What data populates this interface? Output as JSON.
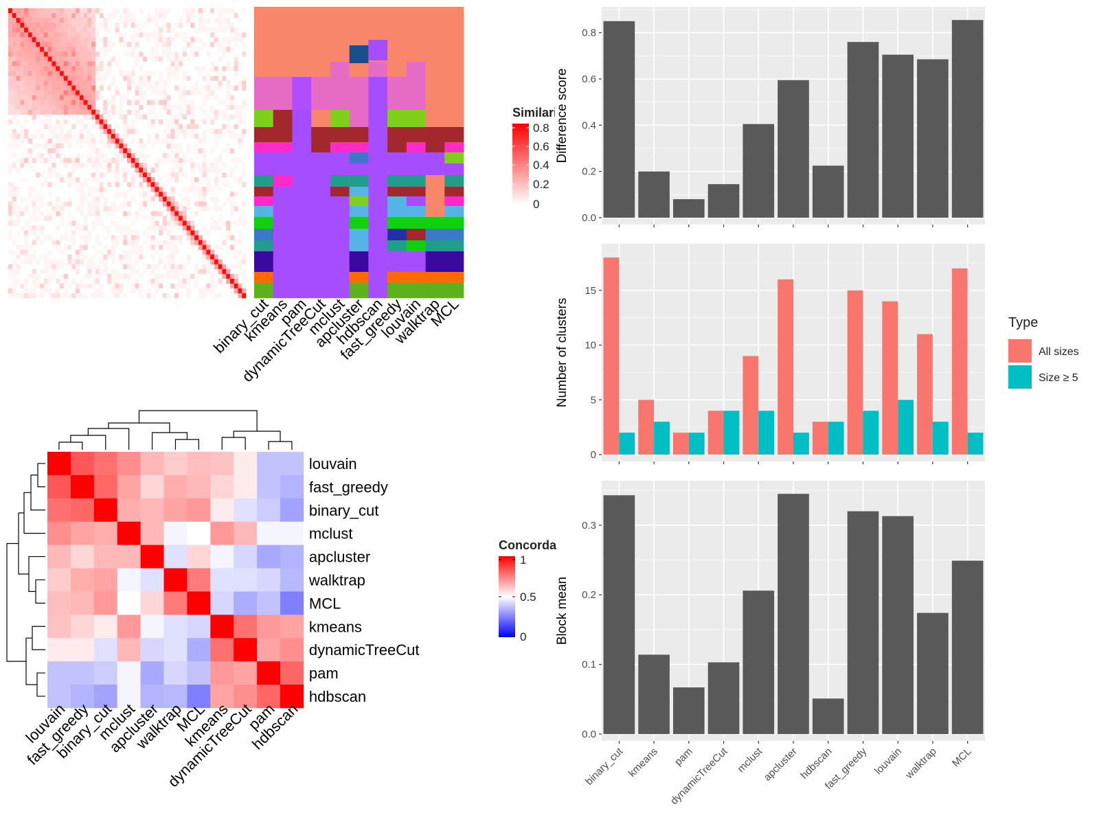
{
  "similarity_heatmap": {
    "legend_title": "Similarity",
    "legend_ticks": [
      "0.8",
      "0.6",
      "0.4",
      "0.2",
      "0"
    ],
    "colors": {
      "high": "#ff0000",
      "low": "#ffffff"
    }
  },
  "cluster_membership": {
    "methods": [
      "binary_cut",
      "kmeans",
      "pam",
      "dynamicTreeCut",
      "mclust",
      "apcluster",
      "hdbscan",
      "fast_greedy",
      "louvain",
      "walktrap",
      "MCL"
    ],
    "palette": [
      "#f8866a",
      "#e56bc4",
      "#b14dff",
      "#a3282d",
      "#ff2ac8",
      "#a64dff",
      "#7fd01a",
      "#1f9e8b",
      "#3b79c8",
      "#55b4e6",
      "#10d010",
      "#2330a8",
      "#ff6a00",
      "#5db21c",
      "#3a0aa0",
      "#1a4f8a"
    ]
  },
  "concordance_heatmap": {
    "legend_title": "Concordance",
    "legend_ticks": [
      "1",
      "0.5",
      "0"
    ],
    "row_labels": [
      "louvain",
      "fast_greedy",
      "binary_cut",
      "mclust",
      "apcluster",
      "walktrap",
      "MCL",
      "kmeans",
      "dynamicTreeCut",
      "pam",
      "hdbscan"
    ],
    "col_labels": [
      "louvain",
      "fast_greedy",
      "binary_cut",
      "mclust",
      "apcluster",
      "walktrap",
      "MCL",
      "kmeans",
      "dynamicTreeCut",
      "pam",
      "hdbscan"
    ],
    "colors": {
      "high": "#ff0000",
      "mid": "#ffffff",
      "low": "#0000ff"
    },
    "matrix": [
      [
        1.0,
        0.83,
        0.78,
        0.72,
        0.64,
        0.6,
        0.63,
        0.62,
        0.54,
        0.38,
        0.38
      ],
      [
        0.83,
        1.0,
        0.8,
        0.68,
        0.58,
        0.66,
        0.64,
        0.58,
        0.54,
        0.38,
        0.35
      ],
      [
        0.78,
        0.8,
        1.0,
        0.66,
        0.64,
        0.68,
        0.7,
        0.54,
        0.44,
        0.4,
        0.32
      ],
      [
        0.72,
        0.68,
        0.66,
        1.0,
        0.64,
        0.48,
        0.5,
        0.7,
        0.64,
        0.48,
        0.48
      ],
      [
        0.64,
        0.58,
        0.64,
        0.64,
        1.0,
        0.44,
        0.58,
        0.48,
        0.42,
        0.33,
        0.35
      ],
      [
        0.6,
        0.66,
        0.68,
        0.48,
        0.44,
        1.0,
        0.76,
        0.44,
        0.44,
        0.42,
        0.36
      ],
      [
        0.63,
        0.64,
        0.7,
        0.5,
        0.58,
        0.76,
        1.0,
        0.42,
        0.34,
        0.38,
        0.25
      ],
      [
        0.62,
        0.58,
        0.54,
        0.7,
        0.48,
        0.44,
        0.42,
        1.0,
        0.78,
        0.7,
        0.68
      ],
      [
        0.54,
        0.54,
        0.44,
        0.64,
        0.42,
        0.44,
        0.34,
        0.78,
        1.0,
        0.68,
        0.72
      ],
      [
        0.38,
        0.38,
        0.4,
        0.48,
        0.33,
        0.42,
        0.38,
        0.7,
        0.68,
        1.0,
        0.8
      ],
      [
        0.38,
        0.35,
        0.32,
        0.48,
        0.35,
        0.36,
        0.25,
        0.68,
        0.72,
        0.8,
        1.0
      ]
    ]
  },
  "chart_data": [
    {
      "type": "bar",
      "categories": [
        "binary_cut",
        "kmeans",
        "pam",
        "dynamicTreeCut",
        "mclust",
        "apcluster",
        "hdbscan",
        "fast_greedy",
        "louvain",
        "walktrap",
        "MCL"
      ],
      "values": [
        0.85,
        0.2,
        0.08,
        0.145,
        0.405,
        0.595,
        0.225,
        0.76,
        0.705,
        0.685,
        0.855
      ],
      "ylabel": "Difference score",
      "ylim": [
        0,
        0.9
      ],
      "yticks": [
        0.0,
        0.2,
        0.4,
        0.6,
        0.8
      ],
      "ytick_labels": [
        "0.0",
        "0.2",
        "0.4",
        "0.6",
        "0.8"
      ],
      "bar_color": "#595959",
      "grid": true
    },
    {
      "type": "bar",
      "categories": [
        "binary_cut",
        "kmeans",
        "pam",
        "dynamicTreeCut",
        "mclust",
        "apcluster",
        "hdbscan",
        "fast_greedy",
        "louvain",
        "walktrap",
        "MCL"
      ],
      "series": [
        {
          "name": "All sizes",
          "color": "#f8766d",
          "values": [
            18,
            5,
            2,
            4,
            9,
            16,
            3,
            15,
            14,
            11,
            17
          ]
        },
        {
          "name": "Size ≥ 5",
          "color": "#00bfc4",
          "values": [
            2,
            3,
            2,
            4,
            4,
            2,
            3,
            4,
            5,
            3,
            2
          ]
        }
      ],
      "ylabel": "Number of clusters",
      "ylim": [
        0,
        19
      ],
      "yticks": [
        0,
        5,
        10,
        15
      ],
      "ytick_labels": [
        "0",
        "5",
        "10",
        "15"
      ],
      "legend_title": "Type",
      "legend_position": "right",
      "grid": true
    },
    {
      "type": "bar",
      "categories": [
        "binary_cut",
        "kmeans",
        "pam",
        "dynamicTreeCut",
        "mclust",
        "apcluster",
        "hdbscan",
        "fast_greedy",
        "louvain",
        "walktrap",
        "MCL"
      ],
      "values": [
        0.343,
        0.114,
        0.067,
        0.103,
        0.206,
        0.345,
        0.051,
        0.32,
        0.313,
        0.174,
        0.249
      ],
      "ylabel": "Block mean",
      "ylim": [
        0,
        0.36
      ],
      "yticks": [
        0.0,
        0.1,
        0.2,
        0.3
      ],
      "ytick_labels": [
        "0.0",
        "0.1",
        "0.2",
        "0.3"
      ],
      "bar_color": "#595959",
      "grid": true
    }
  ]
}
